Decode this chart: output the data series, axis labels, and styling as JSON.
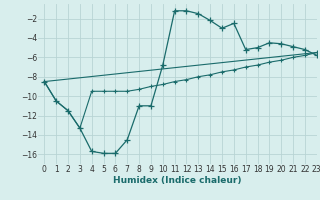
{
  "xlabel": "Humidex (Indice chaleur)",
  "background_color": "#d8eeed",
  "grid_color": "#b8d4d4",
  "line_color": "#1a6b6b",
  "xlim": [
    -0.5,
    23
  ],
  "ylim": [
    -17,
    -0.5
  ],
  "xticks": [
    0,
    1,
    2,
    3,
    4,
    5,
    6,
    7,
    8,
    9,
    10,
    11,
    12,
    13,
    14,
    15,
    16,
    17,
    18,
    19,
    20,
    21,
    22,
    23
  ],
  "yticks": [
    -16,
    -14,
    -12,
    -10,
    -8,
    -6,
    -4,
    -2
  ],
  "curve1_x": [
    0,
    1,
    2,
    3,
    4,
    5,
    6,
    7,
    8,
    9,
    10,
    11,
    12,
    13,
    14,
    15,
    16,
    17,
    18,
    19,
    20,
    21,
    22,
    23
  ],
  "curve1_y": [
    -8.5,
    -10.5,
    -11.5,
    -13.3,
    -15.7,
    -15.9,
    -15.9,
    -14.5,
    -11.0,
    -11.0,
    -6.8,
    -1.2,
    -1.2,
    -1.5,
    -2.2,
    -3.0,
    -2.5,
    -5.2,
    -5.0,
    -4.5,
    -4.6,
    -4.9,
    -5.2,
    -5.8
  ],
  "curve2_x": [
    0,
    1,
    2,
    3,
    4,
    5,
    6,
    7,
    8,
    9,
    10,
    11,
    12,
    13,
    14,
    15,
    16,
    17,
    18,
    19,
    20,
    21,
    22,
    23
  ],
  "curve2_y": [
    -8.5,
    -10.5,
    -11.5,
    -13.3,
    -9.5,
    -9.5,
    -9.5,
    -9.5,
    -9.3,
    -9.0,
    -8.8,
    -8.5,
    -8.3,
    -8.0,
    -7.8,
    -7.5,
    -7.3,
    -7.0,
    -6.8,
    -6.5,
    -6.3,
    -6.0,
    -5.8,
    -5.5
  ],
  "line3_x": [
    0,
    23
  ],
  "line3_y": [
    -8.5,
    -5.5
  ]
}
